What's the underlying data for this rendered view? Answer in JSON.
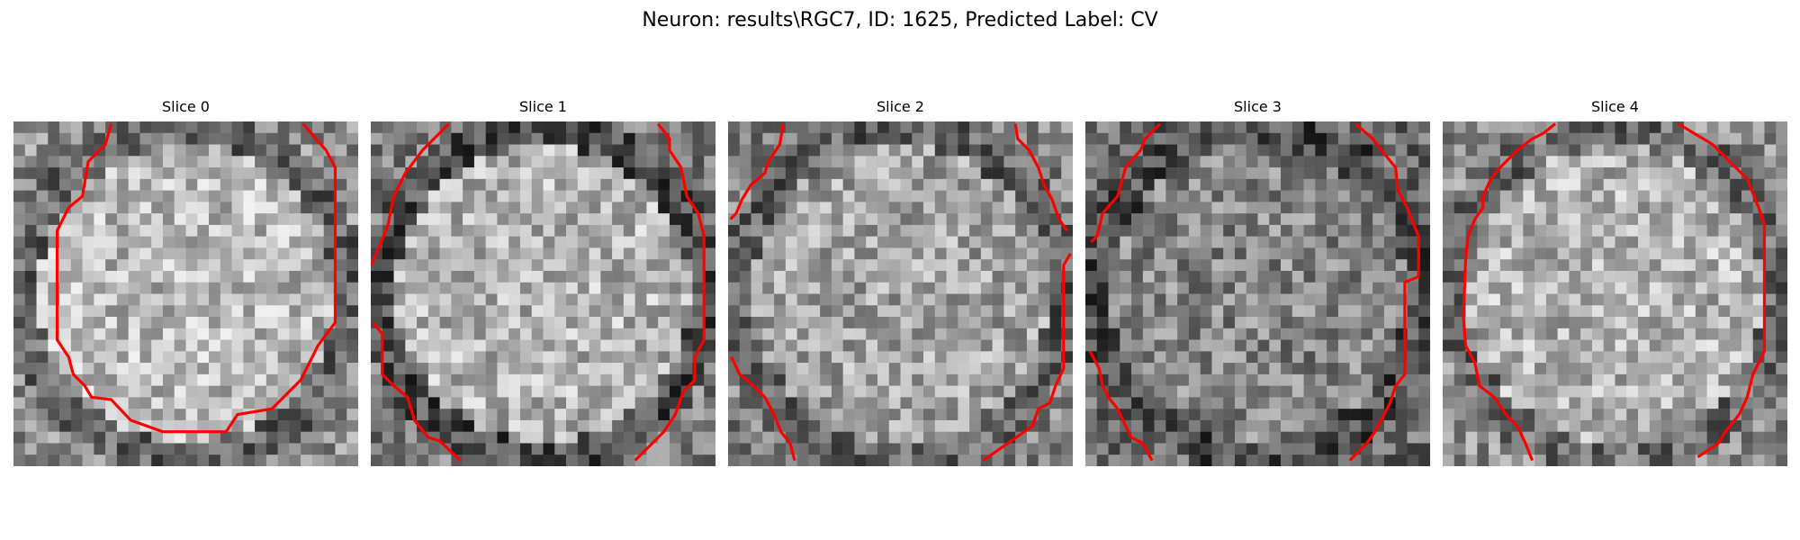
{
  "figure": {
    "title": "Neuron: results\\RGC7, ID: 1625, Predicted Label: CV",
    "contour_color": "#ff0000"
  },
  "panels": [
    {
      "title": "Slice 0",
      "seed": 11,
      "center_brightness": 0.72,
      "edge_brightness": 0.4
    },
    {
      "title": "Slice 1",
      "seed": 23,
      "center_brightness": 0.7,
      "edge_brightness": 0.3
    },
    {
      "title": "Slice 2",
      "seed": 37,
      "center_brightness": 0.64,
      "edge_brightness": 0.38
    },
    {
      "title": "Slice 3",
      "seed": 41,
      "center_brightness": 0.52,
      "edge_brightness": 0.3
    },
    {
      "title": "Slice 4",
      "seed": 59,
      "center_brightness": 0.7,
      "edge_brightness": 0.42
    }
  ]
}
